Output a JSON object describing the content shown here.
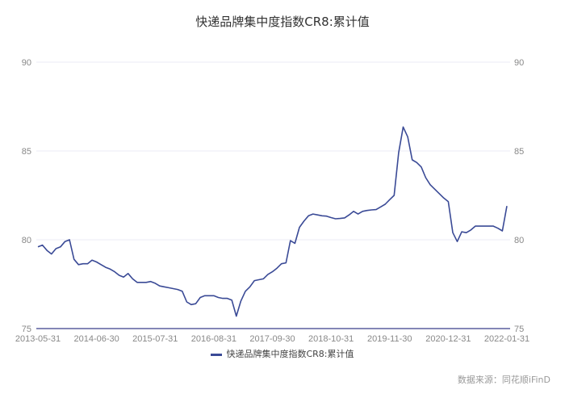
{
  "chart_data": {
    "type": "line",
    "title": "快递品牌集中度指数CR8:累计值",
    "xlabel": "",
    "ylabel": "",
    "ylim": [
      75,
      90
    ],
    "yticks": [
      75,
      80,
      85,
      90
    ],
    "y_axis_both_sides": true,
    "grid": true,
    "legend_placement": "bottom",
    "xtick_labels": [
      "2013-05-31",
      "2014-06-30",
      "2015-07-31",
      "2016-08-31",
      "2017-09-30",
      "2018-10-31",
      "2019-11-30",
      "2020-12-31",
      "2022-01-31"
    ],
    "x": [
      "2013-05-31",
      "2013-06-30",
      "2013-07-31",
      "2013-08-31",
      "2013-09-30",
      "2013-10-31",
      "2013-11-30",
      "2013-12-31",
      "2014-01-31",
      "2014-02-28",
      "2014-03-31",
      "2014-04-30",
      "2014-05-31",
      "2014-06-30",
      "2014-07-31",
      "2014-08-31",
      "2014-09-30",
      "2014-10-31",
      "2014-11-30",
      "2014-12-31",
      "2015-01-31",
      "2015-02-28",
      "2015-03-31",
      "2015-04-30",
      "2015-05-31",
      "2015-06-30",
      "2015-07-31",
      "2015-08-31",
      "2015-09-30",
      "2015-10-31",
      "2015-11-30",
      "2015-12-31",
      "2016-01-31",
      "2016-02-29",
      "2016-03-31",
      "2016-04-30",
      "2016-05-31",
      "2016-06-30",
      "2016-07-31",
      "2016-08-31",
      "2016-09-30",
      "2016-10-31",
      "2016-11-30",
      "2016-12-31",
      "2017-01-31",
      "2017-02-28",
      "2017-03-31",
      "2017-04-30",
      "2017-05-31",
      "2017-06-30",
      "2017-07-31",
      "2017-08-31",
      "2017-09-30",
      "2017-10-31",
      "2017-11-30",
      "2017-12-31",
      "2018-01-31",
      "2018-02-28",
      "2018-03-31",
      "2018-04-30",
      "2018-05-31",
      "2018-06-30",
      "2018-07-31",
      "2018-08-31",
      "2018-09-30",
      "2018-10-31",
      "2018-11-30",
      "2018-12-31",
      "2019-01-31",
      "2019-02-28",
      "2019-03-31",
      "2019-04-30",
      "2019-05-31",
      "2019-06-30",
      "2019-07-31",
      "2019-08-31",
      "2019-09-30",
      "2019-10-31",
      "2019-11-30",
      "2019-12-31",
      "2020-01-31",
      "2020-02-29",
      "2020-03-31",
      "2020-04-30",
      "2020-05-31",
      "2020-06-30",
      "2020-07-31",
      "2020-08-31",
      "2020-09-30",
      "2020-10-31",
      "2020-11-30",
      "2020-12-31",
      "2021-01-31",
      "2021-02-28",
      "2021-03-31",
      "2021-04-30",
      "2021-05-31",
      "2021-06-30",
      "2021-07-31",
      "2021-08-31",
      "2021-09-30",
      "2021-10-31",
      "2021-11-30",
      "2021-12-31",
      "2022-01-31"
    ],
    "series": [
      {
        "name": "快递品牌集中度指数CR8:累计值",
        "color": "#3a4a96",
        "values": [
          79.6,
          79.7,
          79.4,
          79.2,
          79.5,
          79.6,
          79.9,
          80.0,
          78.9,
          78.6,
          78.65,
          78.65,
          78.85,
          78.75,
          78.6,
          78.45,
          78.35,
          78.2,
          78.0,
          77.9,
          78.1,
          77.8,
          77.6,
          77.6,
          77.6,
          77.65,
          77.55,
          77.4,
          77.35,
          77.3,
          77.25,
          77.2,
          77.1,
          76.5,
          76.35,
          76.4,
          76.75,
          76.85,
          76.85,
          76.85,
          76.75,
          76.7,
          76.7,
          76.6,
          75.7,
          76.55,
          77.1,
          77.35,
          77.7,
          77.75,
          77.8,
          78.05,
          78.2,
          78.4,
          78.65,
          78.7,
          79.95,
          79.8,
          80.7,
          81.05,
          81.35,
          81.45,
          81.4,
          81.35,
          81.33,
          81.25,
          81.18,
          81.2,
          81.23,
          81.4,
          81.6,
          81.45,
          81.6,
          81.65,
          81.68,
          81.7,
          81.85,
          82.0,
          82.26,
          82.5,
          84.9,
          86.35,
          85.8,
          84.5,
          84.35,
          84.1,
          83.5,
          83.1,
          82.85,
          82.6,
          82.35,
          82.15,
          80.4,
          79.9,
          80.45,
          80.4,
          80.55,
          80.77,
          80.77,
          80.77,
          80.77,
          80.77,
          80.65,
          80.5,
          81.9
        ]
      }
    ]
  },
  "colors": {
    "grid": "#ebebf5",
    "axis": "#5a5f9e",
    "tick_text": "#888888"
  },
  "source": "数据来源：同花顺iFinD"
}
